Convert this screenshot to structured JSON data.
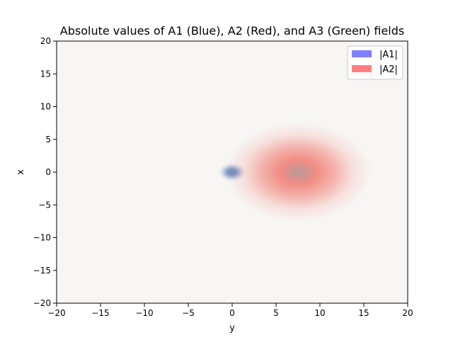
{
  "chart_data": {
    "type": "heatmap",
    "title": "Absolute values of A1 (Blue), A2 (Red), and A3 (Green) fields",
    "xlabel": "y",
    "ylabel": "x",
    "xlim": [
      -20,
      20
    ],
    "ylim": [
      -20,
      20
    ],
    "xticks": [
      "−20",
      "−15",
      "−10",
      "−5",
      "0",
      "5",
      "10",
      "15",
      "20"
    ],
    "yticks": [
      "20",
      "15",
      "10",
      "5",
      "0",
      "−5",
      "−10",
      "−15",
      "−20"
    ],
    "grid": false,
    "legend_placement": "upper-right",
    "background_color": "#f7f6f4",
    "series": [
      {
        "name": "|A1|",
        "color": "#7f7fff",
        "center_y": 0,
        "center_x": 0,
        "sigma_y": 0.6,
        "sigma_x": 0.55
      },
      {
        "name": "|A2|",
        "color": "#ff7f7f",
        "center_y": 7.5,
        "center_x": 0,
        "sigma_y": 3.2,
        "sigma_x": 2.9
      }
    ]
  }
}
